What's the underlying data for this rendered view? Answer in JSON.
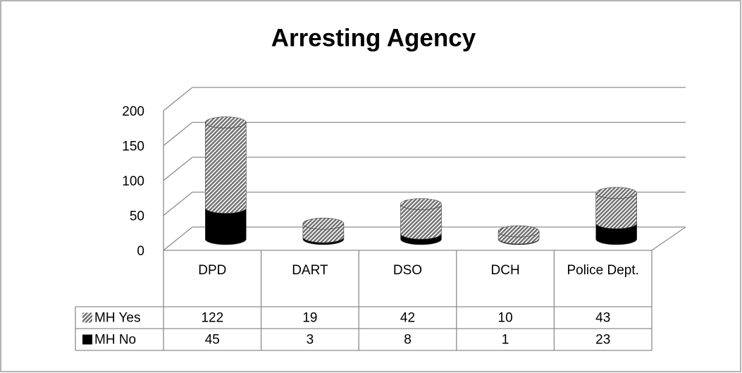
{
  "chart_data": {
    "type": "bar3d_stacked",
    "title": "Arresting Agency",
    "categories": [
      "DPD",
      "DART",
      "DSO",
      "DCH",
      "Police Dept."
    ],
    "series": [
      {
        "name": "MH Yes",
        "color": "#7f7f7f",
        "pattern": "hatch",
        "values": [
          122,
          19,
          42,
          10,
          43
        ]
      },
      {
        "name": "MH No",
        "color": "#000000",
        "values": [
          45,
          3,
          8,
          1,
          23
        ]
      }
    ],
    "stack_order": [
      "MH No",
      "MH Yes"
    ],
    "ylim": [
      0,
      200
    ],
    "yticks": [
      0,
      50,
      100,
      150,
      200
    ],
    "grid": true,
    "data_table": true
  }
}
